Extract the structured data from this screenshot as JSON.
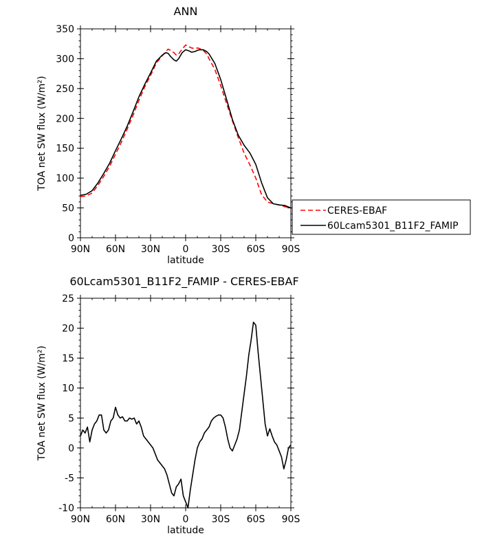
{
  "chart_data": [
    {
      "type": "line",
      "title": "ANN",
      "xlabel": "latitude",
      "ylabel": "TOA net SW flux (W/m²)",
      "xlim": [
        90,
        -90
      ],
      "ylim": [
        0,
        350
      ],
      "x_ticks": [
        {
          "value": 90,
          "label": "90N"
        },
        {
          "value": 60,
          "label": "60N"
        },
        {
          "value": 30,
          "label": "30N"
        },
        {
          "value": 0,
          "label": "0"
        },
        {
          "value": -30,
          "label": "30S"
        },
        {
          "value": -60,
          "label": "60S"
        },
        {
          "value": -90,
          "label": "90S"
        }
      ],
      "y_ticks": [
        {
          "value": 0,
          "label": "0"
        },
        {
          "value": 50,
          "label": "50"
        },
        {
          "value": 100,
          "label": "100"
        },
        {
          "value": 150,
          "label": "150"
        },
        {
          "value": 200,
          "label": "200"
        },
        {
          "value": 250,
          "label": "250"
        },
        {
          "value": 300,
          "label": "300"
        },
        {
          "value": 350,
          "label": "350"
        }
      ],
      "legend_position": "right, outside plot",
      "series": [
        {
          "name": "CERES-EBAF",
          "color": "#ff0000",
          "dash": true,
          "x": [
            90,
            85,
            80,
            75,
            70,
            65,
            60,
            55,
            50,
            45,
            40,
            35,
            30,
            25,
            20,
            17,
            15,
            13,
            10,
            8,
            6,
            3,
            0,
            -3,
            -5,
            -8,
            -10,
            -12,
            -15,
            -18,
            -20,
            -25,
            -30,
            -35,
            -40,
            -45,
            -50,
            -55,
            -60,
            -65,
            -70,
            -75,
            -80,
            -85,
            -90
          ],
          "y": [
            69,
            70,
            75,
            88,
            103,
            120,
            140,
            160,
            182,
            205,
            230,
            253,
            272,
            293,
            305,
            312,
            316,
            314,
            310,
            306,
            308,
            316,
            323,
            320,
            318,
            317,
            318,
            317,
            314,
            308,
            300,
            282,
            255,
            225,
            196,
            168,
            142,
            122,
            100,
            72,
            60,
            57,
            55,
            52,
            50
          ]
        },
        {
          "name": "60Lcam5301_B11F2_FAMIP",
          "color": "#000000",
          "dash": false,
          "x": [
            90,
            85,
            80,
            75,
            70,
            65,
            60,
            55,
            50,
            45,
            40,
            35,
            30,
            25,
            20,
            17,
            15,
            13,
            10,
            8,
            6,
            3,
            0,
            -3,
            -5,
            -8,
            -10,
            -12,
            -15,
            -18,
            -20,
            -25,
            -30,
            -35,
            -40,
            -45,
            -50,
            -55,
            -60,
            -65,
            -70,
            -75,
            -80,
            -85,
            -90
          ],
          "y": [
            71,
            73,
            79,
            92,
            108,
            125,
            146,
            166,
            187,
            211,
            236,
            257,
            276,
            296,
            306,
            310,
            309,
            304,
            298,
            296,
            300,
            310,
            315,
            313,
            311,
            312,
            314,
            315,
            315,
            312,
            308,
            292,
            265,
            232,
            198,
            172,
            155,
            142,
            123,
            92,
            67,
            57,
            55,
            54,
            50
          ]
        }
      ]
    },
    {
      "type": "line",
      "title": "60Lcam5301_B11F2_FAMIP - CERES-EBAF",
      "xlabel": "latitude",
      "ylabel": "TOA net SW flux (W/m²)",
      "xlim": [
        90,
        -90
      ],
      "ylim": [
        -10,
        25
      ],
      "x_ticks": [
        {
          "value": 90,
          "label": "90N"
        },
        {
          "value": 60,
          "label": "60N"
        },
        {
          "value": 30,
          "label": "30N"
        },
        {
          "value": 0,
          "label": "0"
        },
        {
          "value": -30,
          "label": "30S"
        },
        {
          "value": -60,
          "label": "60S"
        },
        {
          "value": -90,
          "label": "90S"
        }
      ],
      "y_ticks": [
        {
          "value": -10,
          "label": "-10"
        },
        {
          "value": -5,
          "label": "-5"
        },
        {
          "value": 0,
          "label": "0"
        },
        {
          "value": 5,
          "label": "5"
        },
        {
          "value": 10,
          "label": "10"
        },
        {
          "value": 15,
          "label": "15"
        },
        {
          "value": 20,
          "label": "20"
        },
        {
          "value": 25,
          "label": "25"
        }
      ],
      "series": [
        {
          "color": "#000000",
          "dash": false,
          "x": [
            90,
            88,
            86,
            84,
            82,
            80,
            78,
            76,
            74,
            72,
            70,
            68,
            66,
            64,
            62,
            60,
            58,
            56,
            54,
            52,
            50,
            48,
            46,
            44,
            42,
            40,
            38,
            36,
            34,
            32,
            30,
            28,
            26,
            24,
            22,
            20,
            18,
            16,
            14,
            12,
            10,
            8,
            6,
            4,
            2,
            0,
            -2,
            -4,
            -6,
            -8,
            -10,
            -12,
            -14,
            -16,
            -18,
            -20,
            -22,
            -24,
            -26,
            -28,
            -30,
            -32,
            -34,
            -36,
            -38,
            -40,
            -42,
            -44,
            -46,
            -48,
            -50,
            -52,
            -54,
            -56,
            -58,
            -60,
            -62,
            -64,
            -66,
            -68,
            -70,
            -72,
            -74,
            -76,
            -78,
            -80,
            -82,
            -84,
            -86,
            -88,
            -90
          ],
          "y": [
            2.0,
            3.0,
            2.5,
            3.5,
            1.0,
            3.0,
            4.0,
            4.5,
            5.5,
            5.5,
            3.0,
            2.5,
            3.0,
            4.5,
            5.0,
            6.8,
            5.5,
            5.0,
            5.2,
            4.5,
            4.5,
            5.0,
            4.8,
            5.0,
            4.0,
            4.5,
            3.5,
            2.0,
            1.5,
            1.0,
            0.5,
            0.0,
            -1.0,
            -2.0,
            -2.5,
            -3.0,
            -3.5,
            -4.5,
            -6.0,
            -7.5,
            -8.0,
            -6.5,
            -6.0,
            -5.2,
            -8.0,
            -9.0,
            -10.0,
            -7.0,
            -4.5,
            -2.0,
            0.0,
            1.0,
            1.5,
            2.5,
            3.0,
            3.5,
            4.5,
            5.0,
            5.3,
            5.5,
            5.5,
            5.0,
            3.5,
            1.5,
            0.0,
            -0.5,
            0.5,
            1.5,
            3.0,
            6.0,
            9.0,
            12.0,
            15.5,
            18.0,
            21.0,
            20.5,
            16.0,
            12.0,
            8.0,
            4.0,
            2.0,
            3.2,
            2.0,
            1.0,
            0.5,
            -0.5,
            -1.5,
            -3.5,
            -2.0,
            0.0,
            0.5
          ]
        }
      ]
    }
  ],
  "colors": {
    "obs": "#ff0000",
    "model": "#000000",
    "axes": "#000000"
  }
}
